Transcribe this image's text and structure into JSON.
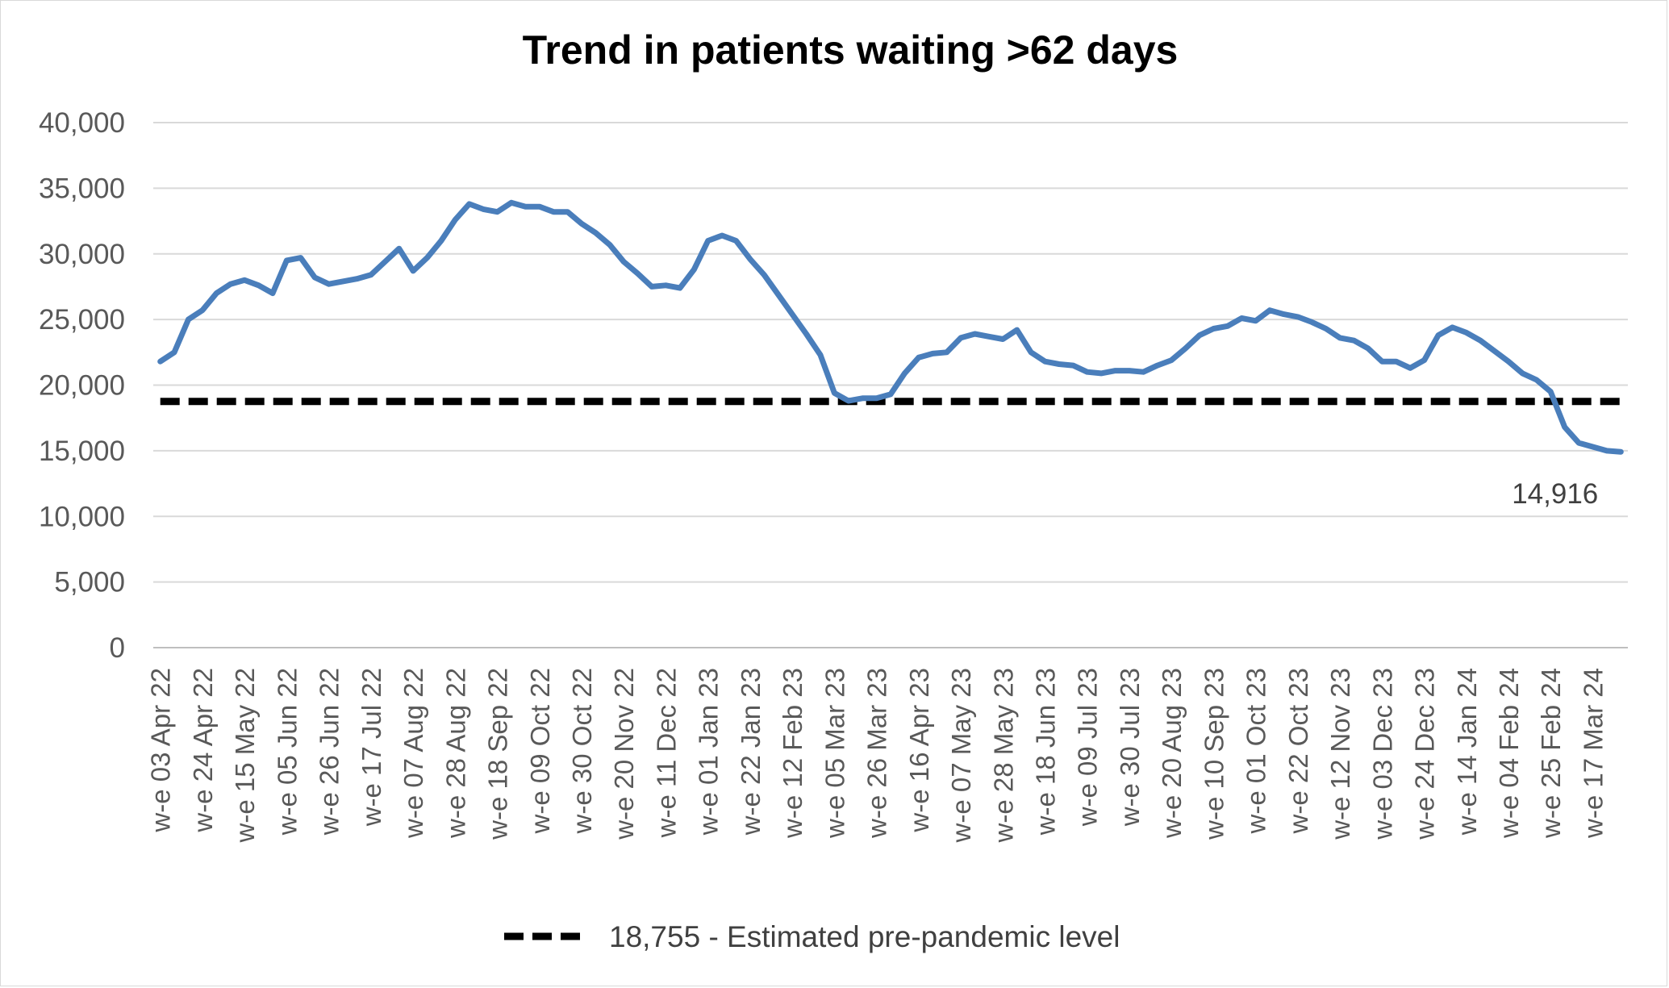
{
  "chart_data": {
    "type": "line",
    "title": "Trend in patients waiting >62 days",
    "xlabel": "",
    "ylabel": "",
    "ylim": [
      0,
      40000
    ],
    "yticks": [
      0,
      5000,
      10000,
      15000,
      20000,
      25000,
      30000,
      35000,
      40000
    ],
    "ytick_labels": [
      "0",
      "5,000",
      "10,000",
      "15,000",
      "20,000",
      "25,000",
      "30,000",
      "35,000",
      "40,000"
    ],
    "x_tick_labels": [
      "w-e 03 Apr 22",
      "w-e 24 Apr 22",
      "w-e 15 May 22",
      "w-e 05 Jun 22",
      "w-e 26 Jun 22",
      "w-e 17 Jul 22",
      "w-e 07 Aug 22",
      "w-e 28 Aug 22",
      "w-e 18 Sep 22",
      "w-e 09 Oct 22",
      "w-e 30 Oct 22",
      "w-e 20 Nov 22",
      "w-e 11 Dec 22",
      "w-e 01 Jan 23",
      "w-e 22 Jan 23",
      "w-e 12 Feb 23",
      "w-e 05 Mar 23",
      "w-e 26 Mar 23",
      "w-e 16 Apr 23",
      "w-e 07 May 23",
      "w-e 28 May 23",
      "w-e 18 Jun 23",
      "w-e 09 Jul 23",
      "w-e 30 Jul 23",
      "w-e 20 Aug 23",
      "w-e 10 Sep 23",
      "w-e 01 Oct 23",
      "w-e 22 Oct 23",
      "w-e 12 Nov 23",
      "w-e 03 Dec 23",
      "w-e 24 Dec 23",
      "w-e 14 Jan 24",
      "w-e 04 Feb 24",
      "w-e 25 Feb 24",
      "w-e 17 Mar 24"
    ],
    "tick_every": 3,
    "grid": "horizontal",
    "legend_position": "bottom",
    "series": [
      {
        "name": "",
        "color": "#4a7ebb",
        "style": "solid",
        "values": [
          21800,
          22500,
          25000,
          25700,
          27000,
          27700,
          28000,
          27600,
          27000,
          29500,
          29700,
          28200,
          27700,
          27900,
          28100,
          28400,
          29400,
          30400,
          28700,
          29700,
          31000,
          32600,
          33800,
          33400,
          33200,
          33900,
          33600,
          33600,
          33200,
          33200,
          32300,
          31600,
          30700,
          29400,
          28500,
          27500,
          27600,
          27400,
          28800,
          31000,
          31400,
          31000,
          29600,
          28400,
          26900,
          25400,
          23900,
          22300,
          19400,
          18800,
          19000,
          19000,
          19300,
          20900,
          22100,
          22400,
          22500,
          23600,
          23900,
          23700,
          23500,
          24200,
          22500,
          21800,
          21600,
          21500,
          21000,
          20900,
          21100,
          21100,
          21000,
          21500,
          21900,
          22800,
          23800,
          24300,
          24500,
          25100,
          24900,
          25700,
          25400,
          25200,
          24800,
          24300,
          23600,
          23400,
          22800,
          21800,
          21800,
          21300,
          21900,
          23800,
          24400,
          24000,
          23400,
          22600,
          21800,
          20900,
          20400,
          19500,
          16800,
          15600,
          15300,
          15000,
          14916
        ]
      },
      {
        "name": "18,755 - Estimated pre-pandemic level",
        "color": "#000000",
        "style": "dashed",
        "constant": 18755
      }
    ],
    "annotations": [
      {
        "text": "14,916",
        "point_index": 104
      }
    ]
  }
}
